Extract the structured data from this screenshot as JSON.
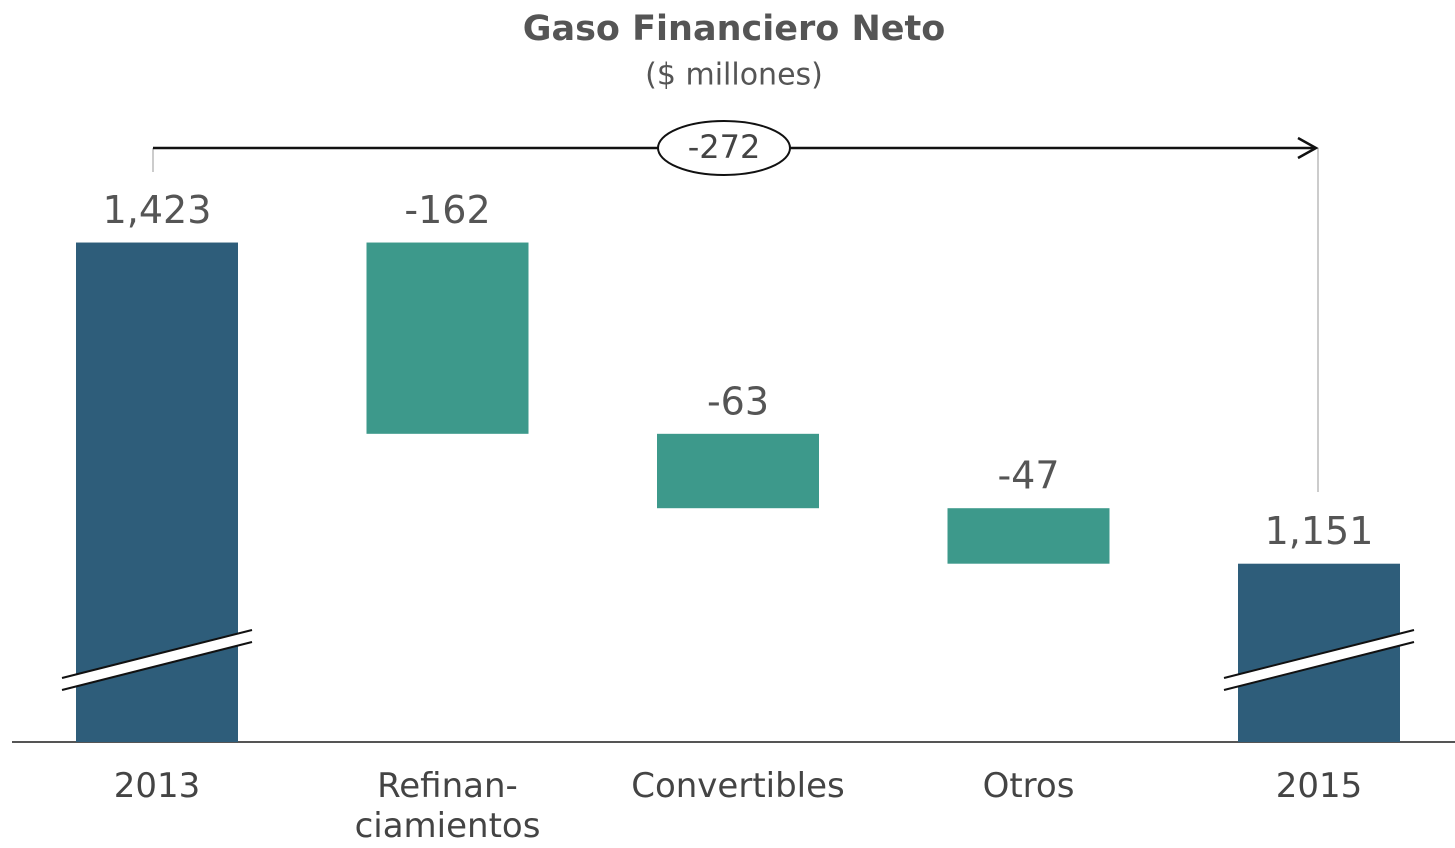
{
  "chart_data": {
    "type": "waterfall",
    "title": "Gaso Financiero Neto",
    "subtitle": "($ millones)",
    "categories": [
      "2013",
      "Refinan-\nciamientos",
      "Convertibles",
      "Otros",
      "2015"
    ],
    "values": [
      1423,
      -162,
      -63,
      -47,
      1151
    ],
    "value_labels": [
      "1,423",
      "-162",
      "-63",
      "-47",
      "1,151"
    ],
    "is_total": [
      true,
      false,
      false,
      false,
      true
    ],
    "total_color": "#2e5d7a",
    "change_color": "#3d998b",
    "ylim": [
      1000,
      1520
    ],
    "axis_break": true,
    "annotation": -272
  }
}
